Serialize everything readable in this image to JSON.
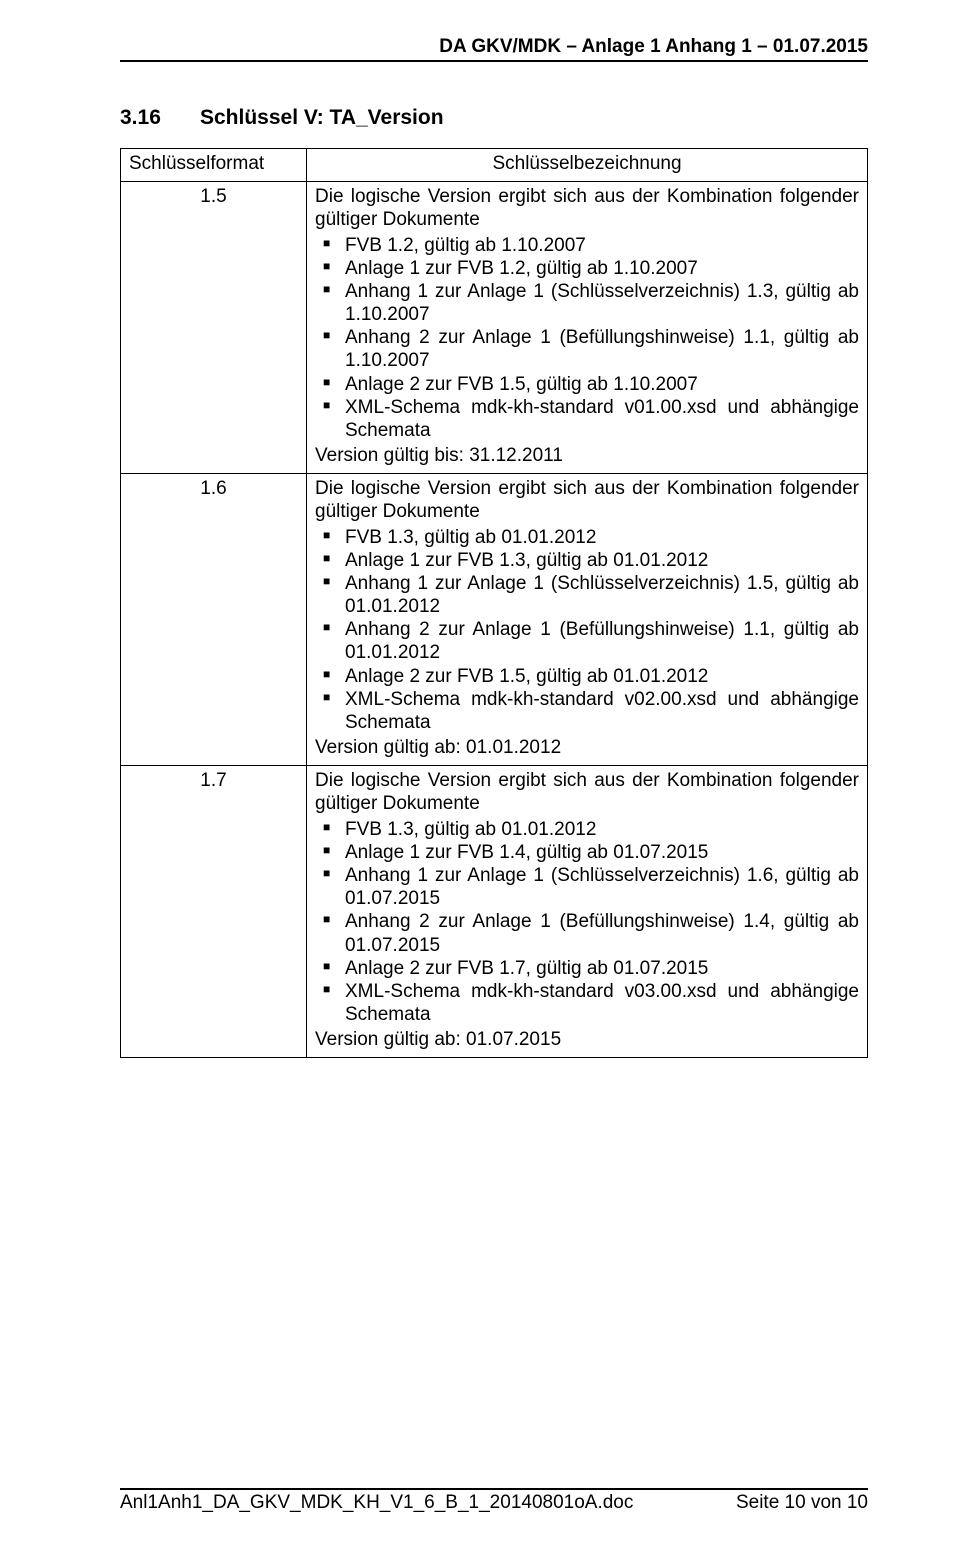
{
  "header": "DA GKV/MDK – Anlage 1 Anhang 1 – 01.07.2015",
  "section": {
    "number": "3.16",
    "title": "Schlüssel V: TA_Version"
  },
  "table": {
    "head": {
      "left": "Schlüsselformat",
      "right": "Schlüsselbezeichnung"
    },
    "rows": [
      {
        "key": "1.5",
        "intro": "Die logische Version ergibt sich aus der Kombination folgender gültiger Dokumente",
        "items": [
          "FVB 1.2, gültig ab 1.10.2007",
          "Anlage 1 zur FVB 1.2, gültig ab 1.10.2007",
          "Anhang 1 zur Anlage 1 (Schlüsselverzeichnis) 1.3, gültig ab 1.10.2007",
          "Anhang 2 zur Anlage 1 (Befüllungshinweise) 1.1, gültig ab 1.10.2007",
          "Anlage 2 zur FVB 1.5, gültig ab 1.10.2007",
          "XML-Schema mdk-kh-standard v01.00.xsd und abhängige Schemata"
        ],
        "closing": "Version gültig bis: 31.12.2011"
      },
      {
        "key": "1.6",
        "intro": "Die logische Version ergibt sich aus der Kombination folgender gültiger Dokumente",
        "items": [
          "FVB 1.3, gültig ab 01.01.2012",
          "Anlage 1 zur FVB 1.3, gültig ab 01.01.2012",
          "Anhang 1 zur Anlage 1 (Schlüsselverzeichnis) 1.5, gültig ab 01.01.2012",
          "Anhang 2 zur Anlage 1 (Befüllungshinweise) 1.1, gültig ab 01.01.2012",
          "Anlage 2 zur FVB 1.5, gültig ab 01.01.2012",
          "XML-Schema mdk-kh-standard v02.00.xsd und abhängige Schemata"
        ],
        "closing": "Version gültig ab: 01.01.2012"
      },
      {
        "key": "1.7",
        "intro": "Die logische Version ergibt sich aus der Kombination folgender gültiger Dokumente",
        "items": [
          "FVB 1.3, gültig ab 01.01.2012",
          "Anlage 1 zur FVB 1.4, gültig ab 01.07.2015",
          "Anhang 1 zur Anlage 1 (Schlüsselverzeichnis) 1.6, gültig ab 01.07.2015",
          "Anhang 2 zur Anlage 1 (Befüllungshinweise) 1.4, gültig ab 01.07.2015",
          "Anlage 2 zur FVB 1.7, gültig ab 01.07.2015",
          "XML-Schema mdk-kh-standard v03.00.xsd und abhängige Schemata"
        ],
        "closing": "Version gültig ab: 01.07.2015"
      }
    ]
  },
  "footer": {
    "left": "Anl1Anh1_DA_GKV_MDK_KH_V1_6_B_1_20140801oA.doc",
    "right": "Seite 10 von 10"
  }
}
